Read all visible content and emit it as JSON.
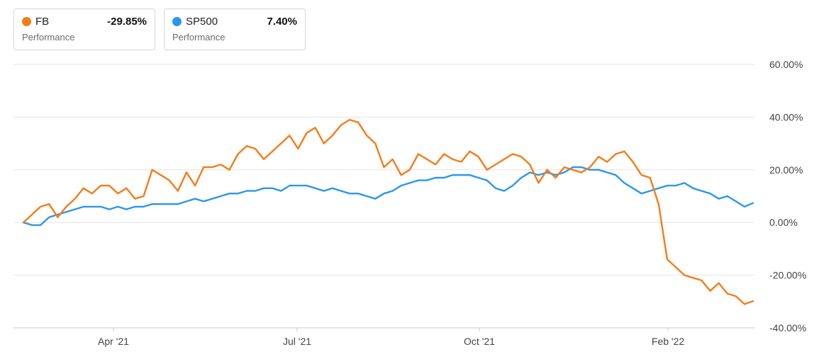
{
  "legend": [
    {
      "name": "FB",
      "value": "-29.85%",
      "sub": "Performance",
      "color": "#f57c17"
    },
    {
      "name": "SP500",
      "value": "7.40%",
      "sub": "Performance",
      "color": "#2b97ec"
    }
  ],
  "chart_data": {
    "type": "line",
    "ylim": [
      -40,
      60
    ],
    "y_ticks": [
      60,
      40,
      20,
      0,
      -20,
      -40
    ],
    "y_tick_labels": [
      "60.00%",
      "40.00%",
      "20.00%",
      "0.00%",
      "-20.00%",
      "-40.00%"
    ],
    "x_ticks": [
      "Apr '21",
      "Jul '21",
      "Oct '21",
      "Feb '22"
    ],
    "grid": true,
    "series": [
      {
        "name": "FB",
        "color": "#f57c17",
        "values": [
          0,
          3,
          6,
          7,
          2,
          6,
          9,
          13,
          11,
          14,
          14,
          11,
          13,
          9,
          10,
          20,
          18,
          16,
          12,
          19,
          14,
          21,
          21,
          22,
          20,
          26,
          29,
          28,
          24,
          27,
          30,
          33,
          28,
          34,
          36,
          30,
          33,
          37,
          39,
          38,
          33,
          30,
          21,
          24,
          18,
          20,
          26,
          24,
          22,
          26,
          24,
          23,
          27,
          25,
          20,
          22,
          24,
          26,
          25,
          22,
          15,
          20,
          17,
          21,
          20,
          19,
          21,
          25,
          23,
          26,
          27,
          23,
          18,
          17,
          7,
          -14,
          -17,
          -20,
          -21,
          -22,
          -26,
          -23,
          -27,
          -28,
          -31,
          -29.85
        ]
      },
      {
        "name": "SP500",
        "color": "#2b97ec",
        "values": [
          0,
          -1,
          -1,
          2,
          3,
          4,
          5,
          6,
          6,
          6,
          5,
          6,
          5,
          6,
          6,
          7,
          7,
          7,
          7,
          8,
          9,
          8,
          9,
          10,
          11,
          11,
          12,
          12,
          13,
          13,
          12,
          14,
          14,
          14,
          13,
          12,
          13,
          12,
          11,
          11,
          10,
          9,
          11,
          12,
          14,
          15,
          16,
          16,
          17,
          17,
          18,
          18,
          18,
          17,
          16,
          13,
          12,
          14,
          17,
          19,
          18,
          19,
          18,
          19,
          21,
          21,
          20,
          20,
          19,
          18,
          15,
          13,
          11,
          12,
          13,
          14,
          14,
          15,
          13,
          12,
          11,
          9,
          10,
          8,
          6,
          7.4
        ]
      }
    ]
  }
}
